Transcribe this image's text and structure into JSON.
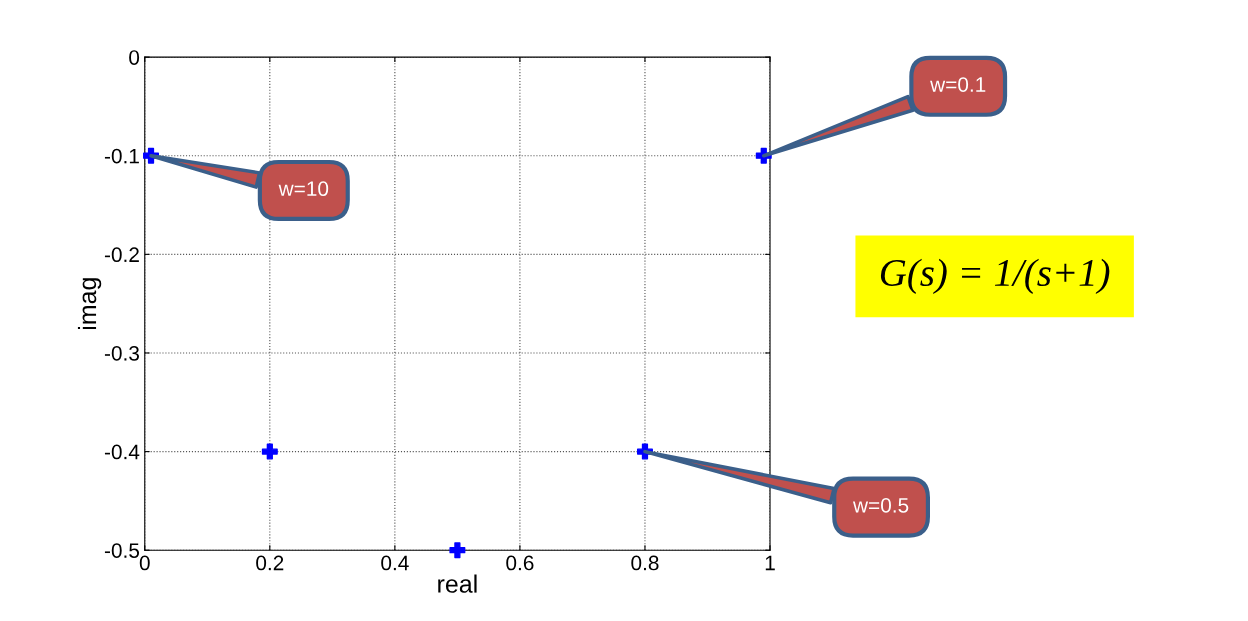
{
  "chart_data": {
    "type": "scatter",
    "xlabel": "real",
    "ylabel": "imag",
    "x": [
      0.01,
      0.2,
      0.5,
      0.8,
      0.99
    ],
    "values": [
      -0.1,
      -0.4,
      -0.5,
      -0.4,
      -0.1
    ],
    "color": "#0000ff",
    "marker": "cross",
    "xlim": [
      0,
      1
    ],
    "ylim": [
      -0.5,
      0
    ],
    "xticks": [
      0,
      0.2,
      0.4,
      0.6,
      0.8,
      1
    ],
    "yticks": [
      -0.5,
      -0.4,
      -0.3,
      -0.2,
      -0.1,
      0
    ],
    "grid": true,
    "annotations": [
      {
        "text": "w=10",
        "x": 0.01,
        "y": -0.1
      },
      {
        "text": "w=0.1",
        "x": 0.99,
        "y": -0.1
      },
      {
        "text": "w=0.5",
        "x": 0.8,
        "y": -0.4
      },
      "G(s) = 1/(s+1)"
    ]
  }
}
